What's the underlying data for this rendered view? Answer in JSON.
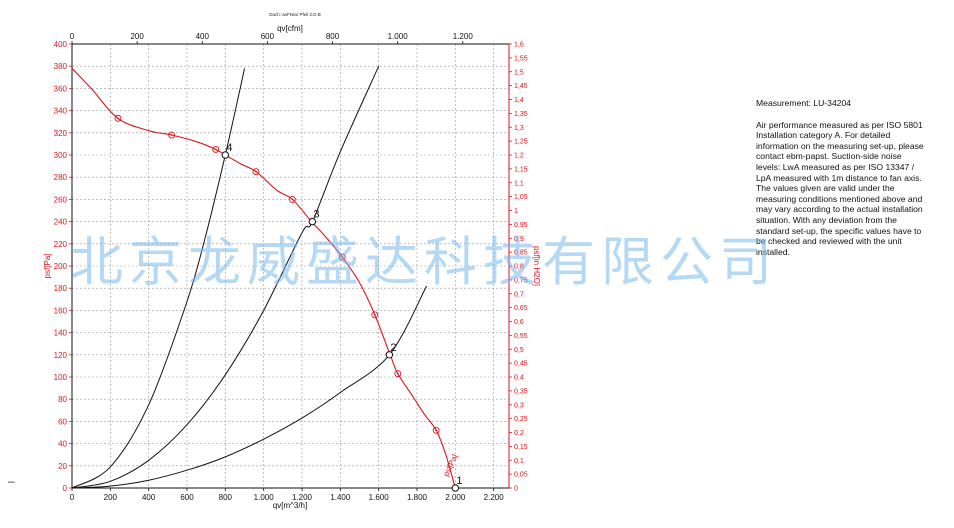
{
  "chart_data": {
    "type": "line",
    "title": "Dach: axFN/ar Pfeil 2.D.B",
    "x_bottom": {
      "label": "qv[m^3/h]",
      "ticks": [
        0,
        200,
        400,
        600,
        800,
        1000,
        1200,
        1400,
        1600,
        1800,
        2000,
        2200
      ],
      "tick_labels": [
        "0",
        "200",
        "400",
        "600",
        "800",
        "1.000",
        "1.200",
        "1.400",
        "1.600",
        "1.800",
        "2.000",
        "2.200"
      ],
      "range": [
        0,
        2280
      ]
    },
    "x_top": {
      "label": "qv[cfm]",
      "ticks": [
        0,
        200,
        400,
        600,
        800,
        1000,
        1200
      ],
      "tick_labels": [
        "0",
        "200",
        "400",
        "600",
        "800",
        "1.000",
        "1.200"
      ]
    },
    "y_left": {
      "label": "psf[Pa]",
      "ticks": [
        0,
        20,
        40,
        60,
        80,
        100,
        120,
        140,
        160,
        180,
        200,
        220,
        240,
        260,
        280,
        300,
        320,
        340,
        360,
        380,
        400
      ],
      "range": [
        0,
        400
      ]
    },
    "y_right": {
      "label": "psf[in H2O]",
      "ticks": [
        "0",
        "0,05",
        "0,1",
        "0,15",
        "0,2",
        "0,25",
        "0,3",
        "0,35",
        "0,4",
        "0,45",
        "0,5",
        "0,55",
        "0,6",
        "0,65",
        "0,7",
        "0,75",
        "0,8",
        "0,85",
        "0,9",
        "0,95",
        "1",
        "1,05",
        "1,1",
        "1,15",
        "1,2",
        "1,25",
        "1,3",
        "1,35",
        "1,4",
        "1,45",
        "1,5",
        "1,55",
        "1,6"
      ],
      "range": [
        0,
        1.6
      ]
    },
    "grid": true,
    "series": [
      {
        "name": "psf[Pa]",
        "color": "#e0141e",
        "role": "fan-curve",
        "x": [
          0,
          100,
          240,
          400,
          520,
          650,
          750,
          800,
          880,
          960,
          1070,
          1150,
          1250,
          1330,
          1410,
          1500,
          1580,
          1660,
          1700,
          1780,
          1840,
          1900,
          1950,
          2000
        ],
        "y": [
          378,
          360,
          333,
          322,
          318,
          312,
          305,
          300,
          292,
          285,
          268,
          260,
          240,
          225,
          208,
          185,
          156,
          120,
          103,
          82,
          66,
          52,
          30,
          0
        ],
        "markers_x": [
          240,
          520,
          750,
          960,
          1150,
          1410,
          1580,
          1700,
          1900
        ],
        "markers_y": [
          333,
          318,
          305,
          285,
          260,
          208,
          156,
          103,
          52
        ]
      },
      {
        "role": "system-curve",
        "color": "#111111",
        "x": [
          0,
          200,
          400,
          600,
          800,
          1000,
          1200,
          1400,
          1656,
          1850
        ],
        "y": [
          0,
          1.7,
          7,
          16,
          28,
          44,
          63,
          86,
          120,
          182
        ]
      },
      {
        "role": "system-curve",
        "color": "#111111",
        "x": [
          0,
          200,
          400,
          600,
          800,
          1000,
          1200,
          1254,
          1400,
          1600
        ],
        "y": [
          0,
          6,
          25,
          57,
          102,
          160,
          230,
          240,
          303,
          380
        ]
      },
      {
        "role": "system-curve",
        "color": "#111111",
        "x": [
          0,
          200,
          400,
          600,
          700,
          800,
          875,
          900
        ],
        "y": [
          0,
          19,
          75,
          168,
          229,
          300,
          358,
          378
        ]
      }
    ],
    "operating_points": [
      {
        "label": "1",
        "x": 2000,
        "y": 0
      },
      {
        "label": "2",
        "x": 1656,
        "y": 120
      },
      {
        "label": "3",
        "x": 1254,
        "y": 240
      },
      {
        "label": "4",
        "x": 800,
        "y": 300
      }
    ]
  },
  "notes": {
    "measurement": "Measurement: LU-34204",
    "body": "Air performance measured as per ISO 5801 Installation category A. For detailed information on the measuring set-up, please contact ebm-papst. Suction-side noise levels: LwA measured as per ISO 13347 / LpA measured with 1m distance to fan axis. The values given are valid under the measuring conditions mentioned above and may vary according to the actual installation situation. With any deviation from the standard set-up, the specific values have to be checked and reviewed with the unit installed."
  },
  "watermark": "北京龙威盛达科技有限公司",
  "colors": {
    "red": "#e0141e",
    "black": "#111111",
    "grid": "#9a9a9a",
    "watermark": "#78b9eb"
  }
}
